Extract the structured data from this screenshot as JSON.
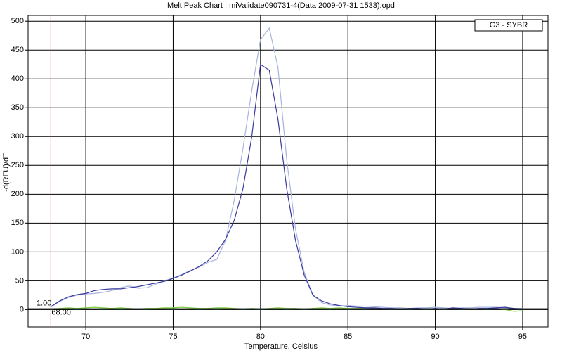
{
  "chart_data": {
    "type": "line",
    "title": "Melt Peak Chart : miValidate090731-4(Data 2009-07-31 1533).opd",
    "x_label": "Temperature, Celsius",
    "y_label": "-d(RFU)/dT",
    "legend": "G3 - SYBR",
    "grid": true,
    "xlim": [
      66.7,
      96.45
    ],
    "ylim": [
      -30,
      510
    ],
    "xticks": [
      70,
      75,
      80,
      85,
      90,
      95
    ],
    "yticks": [
      0,
      50,
      100,
      150,
      200,
      250,
      300,
      350,
      400,
      450,
      500
    ],
    "marker_x": {
      "value": 68,
      "label": "68.00"
    },
    "marker_y": {
      "value": 1,
      "label": "1.00"
    },
    "x": [
      68,
      68.5,
      69,
      69.5,
      70,
      70.5,
      71,
      71.5,
      72,
      72.5,
      73,
      73.5,
      74,
      74.5,
      75,
      75.5,
      76,
      76.5,
      77,
      77.5,
      78,
      78.5,
      79,
      79.5,
      80,
      80.5,
      81,
      81.5,
      82,
      82.5,
      83,
      83.5,
      84,
      84.5,
      85,
      85.5,
      86,
      86.5,
      87,
      87.5,
      88,
      88.5,
      89,
      89.5,
      90,
      90.5,
      91,
      91.5,
      92,
      92.5,
      93,
      93.5,
      94,
      94.5,
      95
    ],
    "series": [
      {
        "color": "#3a3a9e",
        "values": [
          5,
          15,
          22,
          26,
          28,
          33,
          35,
          36,
          36,
          38,
          40,
          43,
          46,
          49,
          54,
          60,
          67,
          75,
          85,
          100,
          122,
          155,
          210,
          300,
          425,
          415,
          330,
          210,
          120,
          60,
          25,
          15,
          10,
          7,
          5,
          4,
          3,
          3,
          2,
          2,
          1,
          2,
          2,
          1,
          2,
          1,
          3,
          2,
          1,
          2,
          2,
          3,
          4,
          2,
          1
        ]
      },
      {
        "color": "#a8b4e0",
        "values": [
          4,
          14,
          21,
          25,
          27,
          28,
          30,
          33,
          38,
          41,
          37,
          38,
          44,
          50,
          55,
          61,
          68,
          74,
          82,
          87,
          120,
          190,
          280,
          380,
          468,
          488,
          420,
          260,
          140,
          65,
          25,
          12,
          8,
          6,
          7,
          6,
          6,
          5,
          4,
          3,
          3,
          2,
          3,
          3,
          4,
          3,
          2,
          3,
          3,
          4,
          4,
          4,
          3,
          2,
          2
        ]
      },
      {
        "color": "#80d040",
        "values": [
          1,
          2,
          3,
          2,
          3,
          4,
          3,
          2,
          3,
          2,
          1,
          2,
          2,
          3,
          3,
          4,
          3,
          2,
          2,
          3,
          3,
          2,
          1,
          2,
          1,
          2,
          3,
          2,
          2,
          1,
          2,
          3,
          2,
          3,
          2,
          2,
          3,
          2,
          1,
          2,
          3,
          2,
          1,
          2,
          1,
          2,
          1,
          2,
          2,
          1,
          2,
          1,
          0,
          -3,
          -2
        ]
      },
      {
        "color": "#2a8a8a",
        "values": [
          0,
          1,
          1,
          0,
          1,
          1,
          0,
          1,
          0,
          1,
          1,
          0,
          1,
          1,
          0,
          1,
          1,
          0,
          1,
          0,
          1,
          1,
          0,
          1,
          0,
          1,
          1,
          0,
          1,
          0,
          1,
          1,
          0,
          1,
          0,
          1,
          0,
          1,
          1,
          0,
          1,
          0,
          1,
          0,
          1,
          0,
          1,
          0,
          1,
          1,
          0,
          1,
          0,
          1,
          0
        ]
      }
    ]
  }
}
